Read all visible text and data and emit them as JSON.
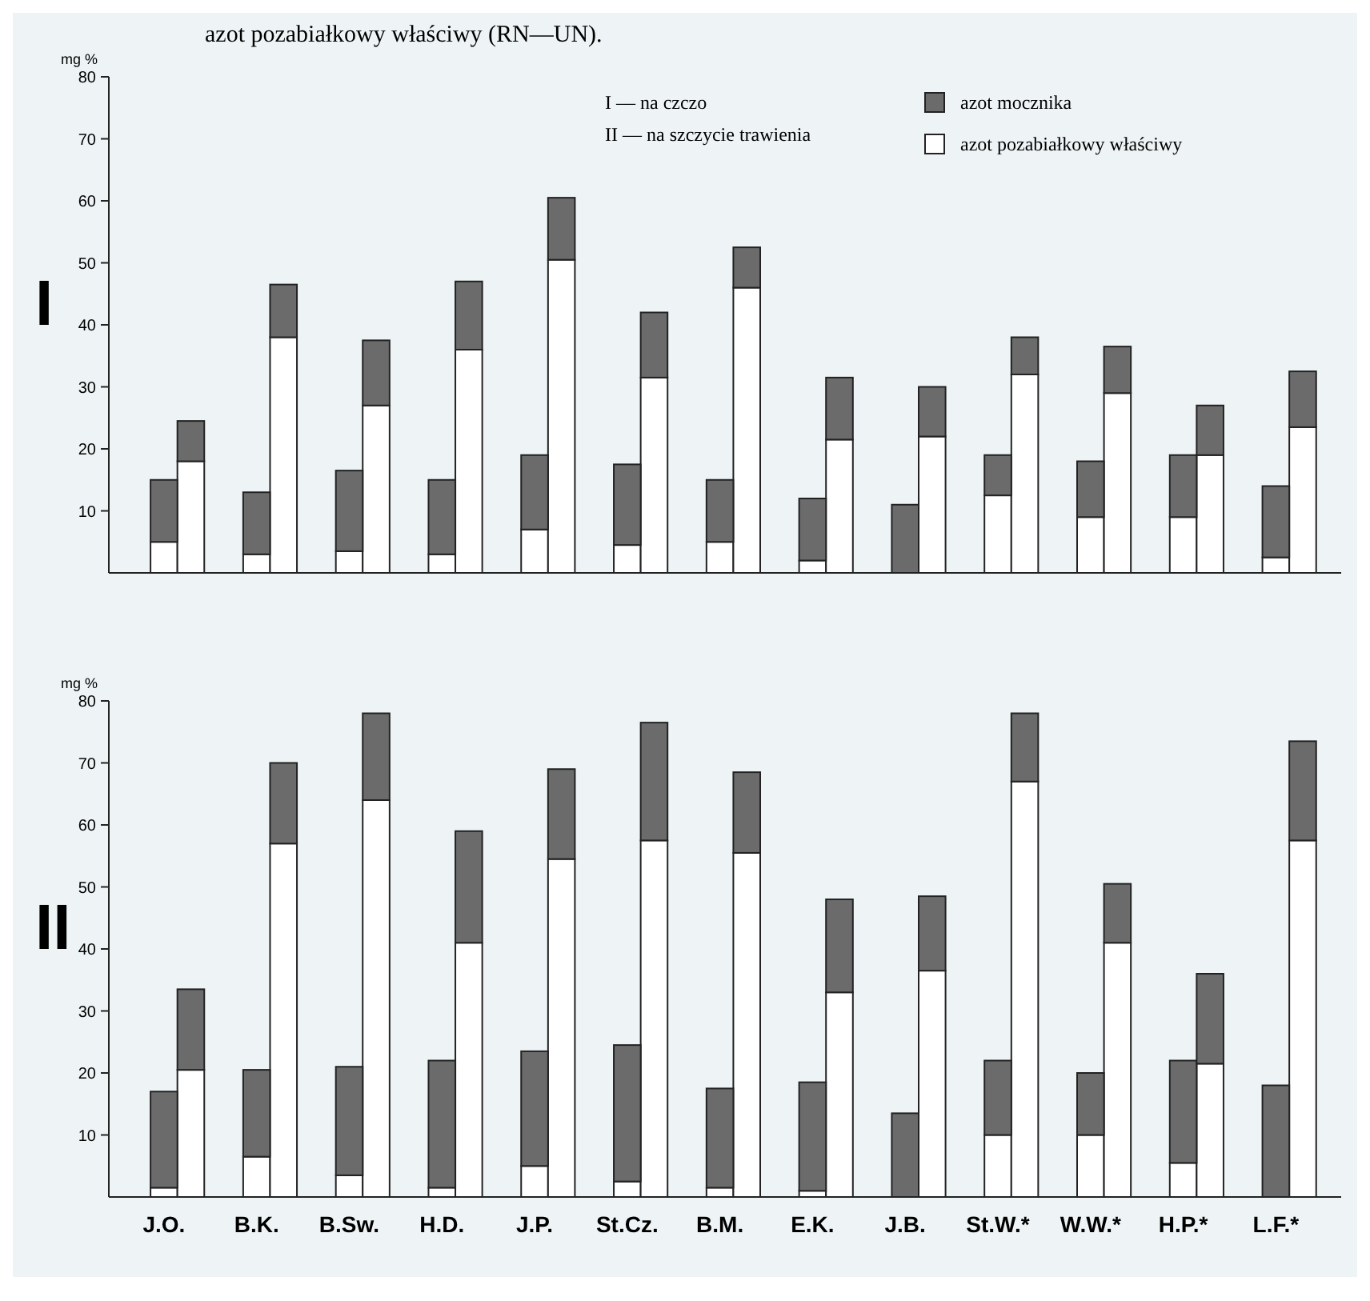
{
  "chart_data": [
    {
      "type": "bar",
      "title": "I",
      "ylabel": "mg %",
      "stacked": true,
      "legend": "top right",
      "grid": false,
      "annotations": [
        "azot pozabiałkowy właściwy (RN—UN).",
        "I — na czczo",
        "II — na szczycie trawienia"
      ],
      "categories": [
        null,
        null,
        null,
        null,
        null,
        null,
        null,
        null,
        null,
        null,
        null,
        null,
        null,
        null,
        null,
        null,
        null,
        null,
        null,
        null,
        null,
        null,
        null,
        null,
        null,
        null
      ],
      "ylim": [
        0,
        80
      ],
      "yticks": [
        10,
        20,
        30,
        40,
        50,
        60,
        70,
        80
      ],
      "series": [
        {
          "name": "azot pozabiałkowy właściwy",
          "color": "#ffffff",
          "values": [
            5,
            18,
            3,
            38,
            3.5,
            27,
            3,
            36,
            7,
            50.5,
            4.5,
            31.5,
            5,
            46,
            2,
            21.5,
            0,
            22,
            12.5,
            32,
            9,
            29,
            9,
            19,
            2.5,
            23.5
          ]
        },
        {
          "name": "azot mocznika",
          "color": "#6b6b6b",
          "values": [
            10,
            6.5,
            10,
            8.5,
            13,
            10.5,
            12,
            11,
            12,
            10,
            13,
            10.5,
            10,
            6.5,
            10,
            10,
            11,
            8,
            6.5,
            6,
            9,
            7.5,
            10,
            8,
            11.5,
            9
          ]
        }
      ]
    },
    {
      "type": "bar",
      "title": "II",
      "ylabel": "mg %",
      "stacked": true,
      "legend": false,
      "grid": false,
      "categories": [
        "J.O.",
        null,
        "B.K.",
        null,
        "B.Sw.",
        null,
        "H.D.",
        null,
        "J.P.",
        null,
        "St.Cz.",
        null,
        "B.M.",
        null,
        "E.K.",
        null,
        "J.B.",
        null,
        "St.W.*",
        null,
        "W.W.*",
        null,
        "H.P.*",
        null,
        "L.F.*",
        null
      ],
      "ylim": [
        0,
        80
      ],
      "yticks": [
        10,
        20,
        30,
        40,
        50,
        60,
        70,
        80
      ],
      "series": [
        {
          "color": "#ffffff",
          "values": [
            1.5,
            20.5,
            6.5,
            57,
            3.5,
            64,
            1.5,
            41,
            5,
            54.5,
            2.5,
            57.5,
            1.5,
            55.5,
            1,
            33,
            0,
            36.5,
            10,
            67,
            10,
            41,
            5.5,
            21.5,
            0,
            57.5
          ]
        },
        {
          "color": "#6b6b6b",
          "values": [
            15.5,
            13,
            14,
            13,
            17.5,
            14,
            20.5,
            18,
            18.5,
            14.5,
            22,
            19,
            16,
            13,
            17.5,
            15,
            13.5,
            12,
            12,
            11,
            10,
            9.5,
            16.5,
            14.5,
            18,
            16
          ]
        }
      ]
    }
  ]
}
